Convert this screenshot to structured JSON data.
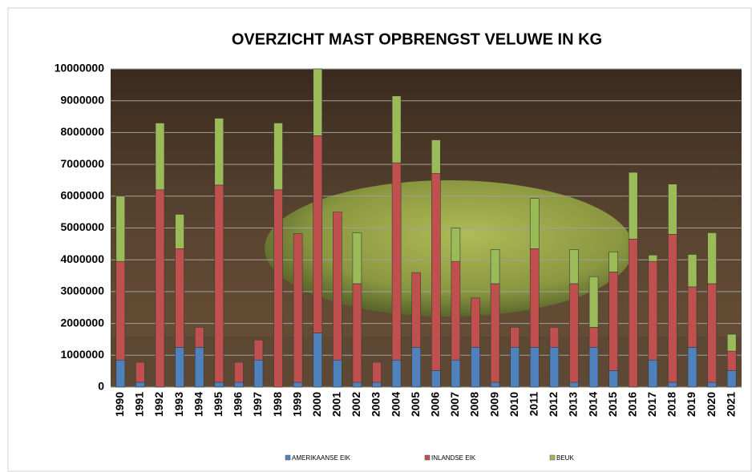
{
  "chart_data": {
    "type": "stacked_bar",
    "title": "OVERZICHT MAST OPBRENGST VELUWE IN KG",
    "categories": [
      "1990",
      "1991",
      "1992",
      "1993",
      "1994",
      "1995",
      "1996",
      "1997",
      "1998",
      "1999",
      "2000",
      "2001",
      "2002",
      "2003",
      "2004",
      "2005",
      "2006",
      "2007",
      "2008",
      "2009",
      "2010",
      "2011",
      "2012",
      "2013",
      "2014",
      "2015",
      "2016",
      "2017",
      "2018",
      "2019",
      "2020",
      "2021"
    ],
    "series": [
      {
        "name": "AMERIKAANSE EIK",
        "color": "#4f81bd",
        "values": [
          850000,
          150000,
          0,
          1250000,
          1250000,
          150000,
          150000,
          850000,
          0,
          150000,
          1700000,
          850000,
          150000,
          150000,
          850000,
          1250000,
          520000,
          850000,
          1250000,
          150000,
          1250000,
          1250000,
          1250000,
          150000,
          1250000,
          520000,
          0,
          850000,
          150000,
          1250000,
          150000,
          520000
        ]
      },
      {
        "name": "INLANDSE EIK",
        "color": "#c0504d",
        "values": [
          3100000,
          630000,
          6200000,
          3100000,
          630000,
          6200000,
          630000,
          630000,
          6200000,
          4670000,
          6200000,
          4650000,
          3100000,
          630000,
          6200000,
          2350000,
          6200000,
          3100000,
          1550000,
          3100000,
          630000,
          3100000,
          630000,
          3100000,
          630000,
          3100000,
          4650000,
          3100000,
          4650000,
          1900000,
          3100000,
          610000
        ]
      },
      {
        "name": "BEUK",
        "color": "#9bbb59",
        "values": [
          2050000,
          0,
          2100000,
          1080000,
          0,
          2100000,
          0,
          0,
          2100000,
          0,
          2100000,
          0,
          1600000,
          0,
          2100000,
          0,
          1050000,
          1050000,
          0,
          1070000,
          0,
          1580000,
          0,
          1070000,
          1590000,
          630000,
          2100000,
          200000,
          1580000,
          1020000,
          1600000,
          530000
        ]
      }
    ],
    "ylim": [
      0,
      10000000
    ],
    "yticks": [
      0,
      1000000,
      2000000,
      3000000,
      4000000,
      5000000,
      6000000,
      7000000,
      8000000,
      9000000,
      10000000
    ],
    "grid": true,
    "legend": "bottom"
  }
}
